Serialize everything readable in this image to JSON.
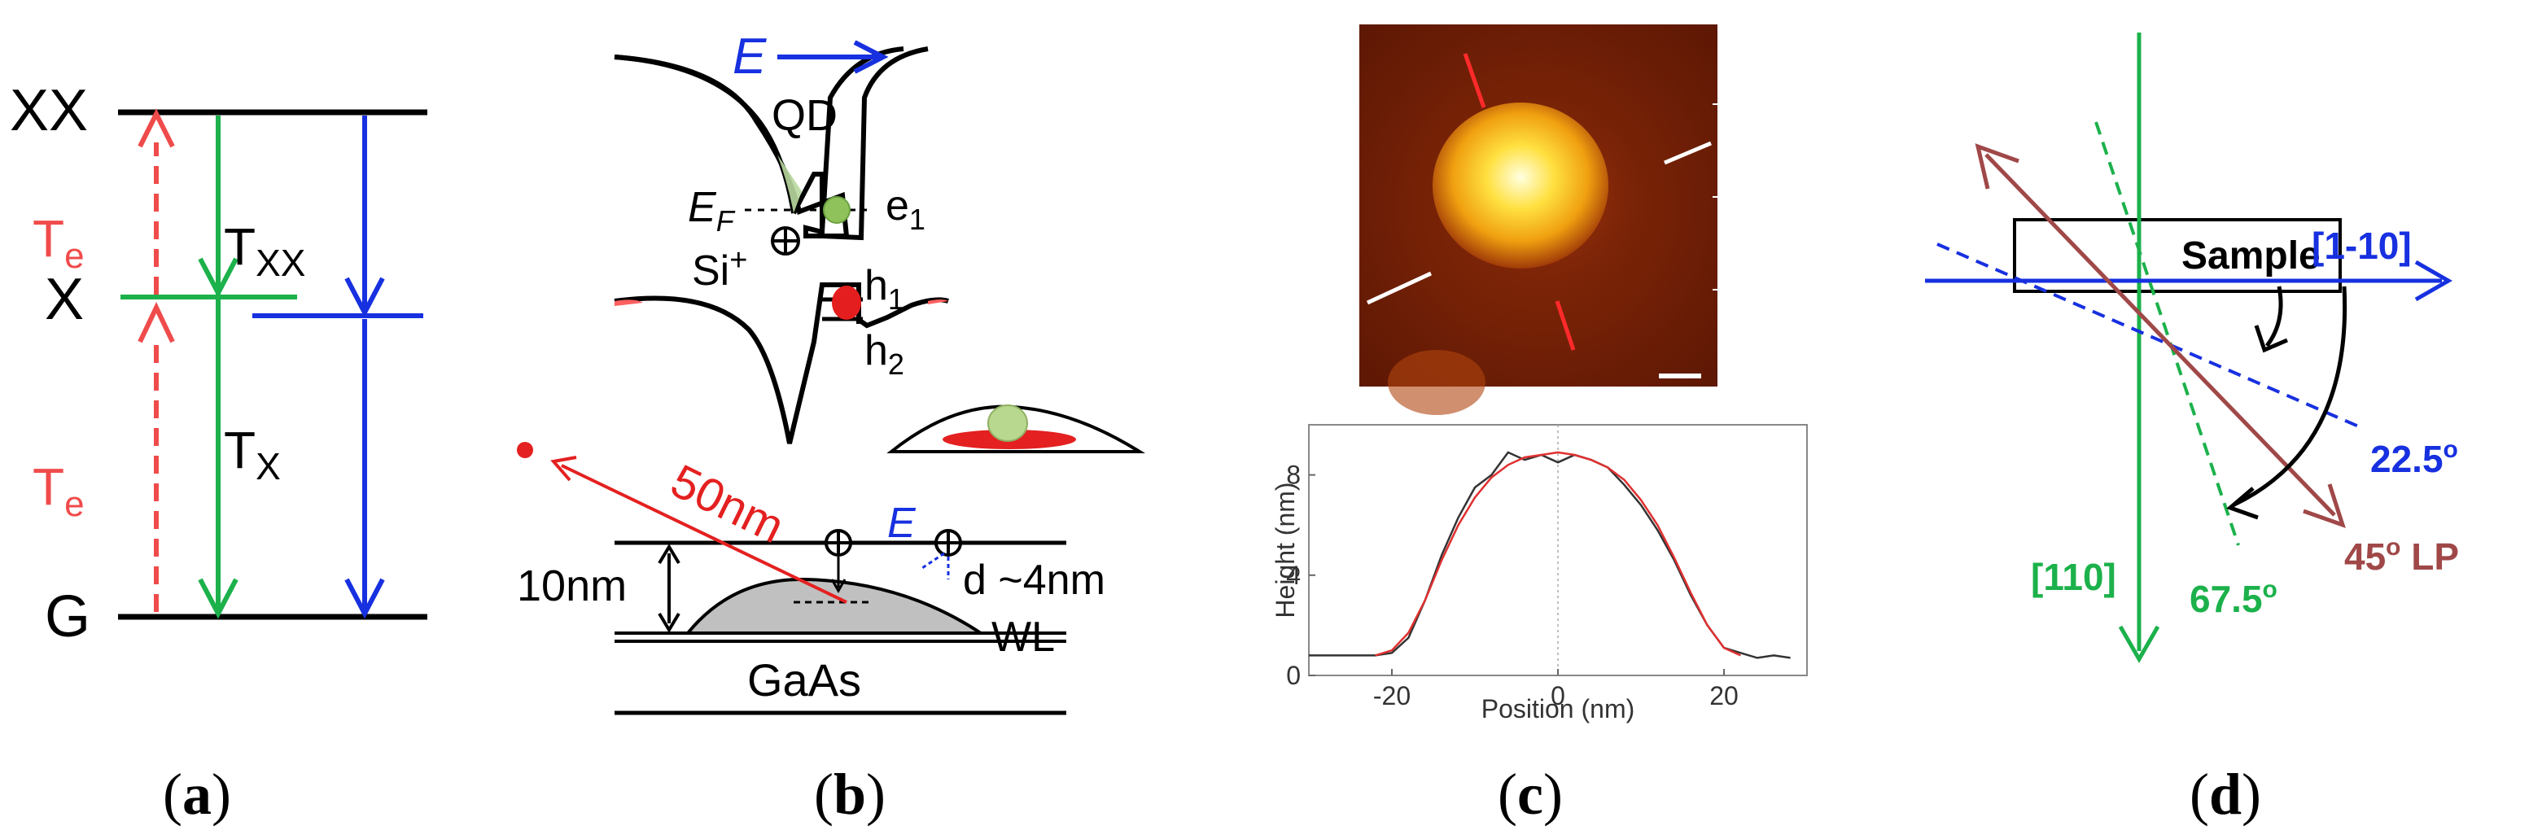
{
  "panel_a": {
    "levels": {
      "xx": "XX",
      "x": "X",
      "g": "G"
    },
    "te_label": "T",
    "te_sub": "e",
    "txx_label": "T",
    "txx_sub": "XX",
    "tx_label": "T",
    "tx_sub": "X",
    "caption_letter": "a"
  },
  "panel_b": {
    "field_label": "E",
    "qd": "QD",
    "ef_label": "E",
    "ef_sub": "F",
    "e1_label": "e",
    "e1_sub": "1",
    "h1_label": "h",
    "h1_sub": "1",
    "h2_label": "h",
    "h2_sub": "2",
    "si_label": "Si",
    "si_sup": "+",
    "distance_50nm": "50nm",
    "field_label_2": "E",
    "thickness_10nm": "10nm",
    "distance_d": "d ~4nm",
    "wl": "WL",
    "gaas": "GaAs",
    "caption_letter": "b"
  },
  "panel_c": {
    "y_label": "Height (nm)",
    "x_label": "Position (nm)",
    "caption_letter": "c",
    "chart_data": {
      "type": "line",
      "xlabel": "Position (nm)",
      "ylabel": "Height (nm)",
      "xlim": [
        -30,
        30
      ],
      "ylim": [
        0,
        10
      ],
      "xticks": [
        "-20",
        "0",
        "20"
      ],
      "yticks": [
        "0",
        "4",
        "8"
      ],
      "series": [
        {
          "color": "#333333",
          "x": [
            -30,
            -25,
            -22,
            -20,
            -18,
            -16,
            -14,
            -12,
            -10,
            -8,
            -6,
            -4,
            -2,
            0,
            2,
            4,
            6,
            8,
            10,
            12,
            14,
            16,
            18,
            20,
            22,
            24,
            26,
            28
          ],
          "y": [
            0.8,
            0.8,
            0.8,
            0.9,
            1.5,
            3.0,
            4.8,
            6.3,
            7.5,
            8.0,
            8.9,
            8.6,
            8.8,
            8.5,
            8.8,
            8.6,
            8.3,
            7.6,
            6.8,
            5.8,
            4.6,
            3.2,
            2.0,
            1.1,
            0.9,
            0.7,
            0.8,
            0.7
          ]
        },
        {
          "color": "#e03030",
          "x": [
            -22,
            -20,
            -18,
            -16,
            -14,
            -12,
            -10,
            -8,
            -6,
            -4,
            -2,
            0,
            2,
            4,
            6,
            8,
            10,
            12,
            14,
            16,
            18,
            20,
            22
          ],
          "y": [
            0.8,
            1.0,
            1.7,
            3.0,
            4.6,
            6.0,
            7.1,
            7.9,
            8.4,
            8.7,
            8.8,
            8.9,
            8.8,
            8.6,
            8.3,
            7.8,
            7.0,
            6.0,
            4.7,
            3.3,
            2.0,
            1.1,
            0.8
          ]
        }
      ]
    }
  },
  "panel_d": {
    "sample": "Sample",
    "axis_1m10": "[1-10]",
    "axis_110": "[110]",
    "angle_22": "22.5",
    "angle_67": "67.5",
    "lp_label": "45",
    "lp_suffix": " LP",
    "degree": "o",
    "caption_letter": "d"
  },
  "colors": {
    "red": "#f04b4b",
    "green": "#1cb14b",
    "blue": "#1730e0",
    "brown": "#a04848",
    "black": "#000000"
  }
}
